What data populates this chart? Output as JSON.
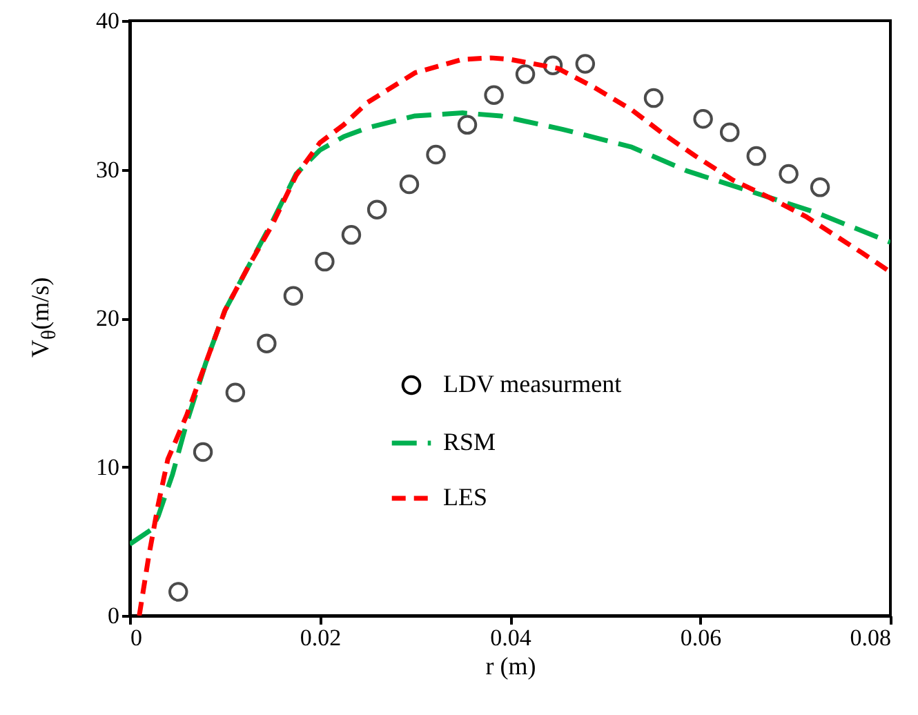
{
  "chart_data": {
    "type": "line",
    "xlabel": "r (m)",
    "ylabel": "V$_{θ}$(m/s)",
    "xlim": [
      0,
      0.08
    ],
    "xticks": [
      0,
      0.02,
      0.04,
      0.06,
      0.08
    ],
    "ylim": [
      0,
      40
    ],
    "yticks": [
      0,
      10,
      20,
      30,
      40
    ],
    "grid": false,
    "legend": "bottom",
    "series": [
      {
        "name": "LDV measurment",
        "type": "scatter",
        "marker": "circle",
        "color": "#000000",
        "x": [
          0.0051,
          0.0077,
          0.0111,
          0.0144,
          0.0172,
          0.0205,
          0.0233,
          0.026,
          0.0294,
          0.0322,
          0.0355,
          0.0383,
          0.0416,
          0.0445,
          0.0479,
          0.0551,
          0.0603,
          0.0631,
          0.0659,
          0.0693,
          0.0726
        ],
        "values": [
          1.6,
          11.0,
          15.0,
          18.3,
          21.5,
          23.8,
          25.6,
          27.3,
          29.0,
          31.0,
          33.0,
          35.0,
          36.4,
          37.0,
          37.1,
          34.8,
          33.4,
          32.5,
          30.9,
          29.7,
          28.8
        ]
      },
      {
        "name": "RSM",
        "type": "line",
        "line_style": "dashed",
        "color": "#00b050",
        "x": [
          0,
          0.0023,
          0.003,
          0.0045,
          0.006,
          0.008,
          0.01,
          0.0125,
          0.015,
          0.0175,
          0.02,
          0.0225,
          0.025,
          0.03,
          0.035,
          0.039,
          0.0455,
          0.0528,
          0.0586,
          0.0659,
          0.0722,
          0.08
        ],
        "values": [
          4.8,
          5.8,
          6.7,
          9.5,
          13,
          17,
          20.5,
          23.5,
          26.5,
          29.7,
          31.3,
          32.2,
          32.8,
          33.6,
          33.8,
          33.6,
          32.7,
          31.5,
          29.9,
          28.4,
          27.1,
          25.1
        ]
      },
      {
        "name": "LES",
        "type": "line",
        "line_style": "dashed",
        "color": "#ff0000",
        "x": [
          0.001,
          0.002,
          0.003,
          0.004,
          0.006,
          0.008,
          0.01,
          0.0125,
          0.015,
          0.0175,
          0.02,
          0.0225,
          0.025,
          0.03,
          0.035,
          0.038,
          0.04,
          0.045,
          0.0489,
          0.0528,
          0.0561,
          0.0595,
          0.0634,
          0.0673,
          0.0712,
          0.077,
          0.08
        ],
        "values": [
          0,
          4,
          7.5,
          10.5,
          13.5,
          17,
          20.5,
          23.5,
          26.3,
          29.6,
          31.8,
          33,
          34.5,
          36.5,
          37.4,
          37.5,
          37.4,
          36.8,
          35.5,
          34.0,
          32.4,
          30.9,
          29.3,
          28.1,
          26.8,
          24.4,
          23.1
        ]
      }
    ]
  }
}
